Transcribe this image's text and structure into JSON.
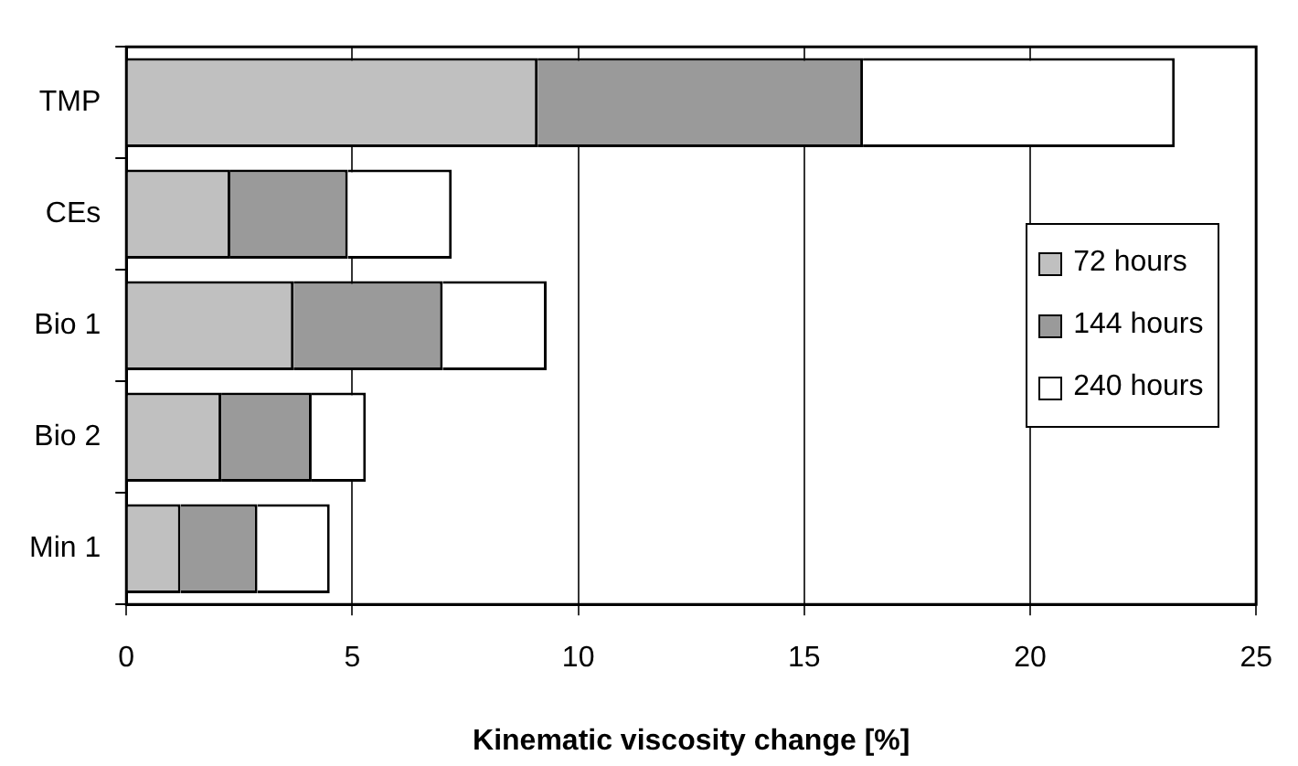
{
  "chart_data": {
    "type": "bar",
    "orientation": "horizontal",
    "stacked": true,
    "xlabel": "Kinematic viscosity change [%]",
    "categories": [
      "TMP",
      "CEs",
      "Bio 1",
      "Bio 2",
      "Min 1"
    ],
    "series": [
      {
        "name": "72 hours",
        "color": "#c0c0c0",
        "values": [
          9.1,
          2.3,
          3.7,
          2.1,
          1.2
        ]
      },
      {
        "name": "144 hours",
        "color": "#9a9a9a",
        "values": [
          7.2,
          2.6,
          3.3,
          2.0,
          1.7
        ]
      },
      {
        "name": "240 hours",
        "color": "#ffffff",
        "values": [
          6.9,
          2.3,
          2.3,
          1.2,
          1.6
        ]
      }
    ],
    "xlim": [
      0,
      25
    ],
    "xticks": [
      0,
      5,
      10,
      15,
      20,
      25
    ],
    "grid": "x",
    "legend": "right"
  }
}
